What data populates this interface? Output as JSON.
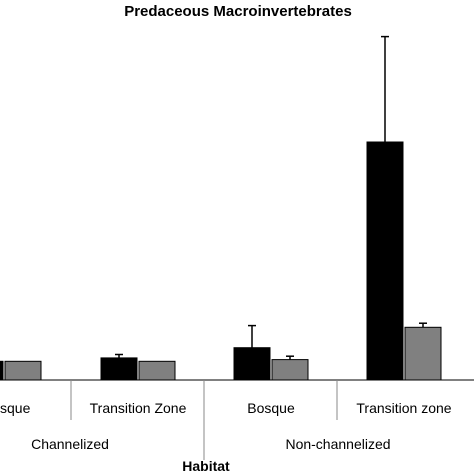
{
  "chart_data": {
    "type": "bar",
    "title": "Predaceous Macroinvertebrates",
    "xlabel": "Habitat",
    "ylabel": "",
    "groups": [
      "Channelized",
      "Non-channelized"
    ],
    "categories": [
      "Bosque",
      "Transition Zone",
      "Bosque",
      "Transition zone"
    ],
    "category_labels": [
      "sque",
      "Transition Zone",
      "Bosque",
      "Transition zone"
    ],
    "ylim": [
      0,
      100
    ],
    "grid": false,
    "series": [
      {
        "color": "#000000",
        "values": [
          5.5,
          6.5,
          9.5,
          70
        ],
        "errors": [
          0,
          1,
          6.5,
          31
        ]
      },
      {
        "color": "#808080",
        "values": [
          5.5,
          5.5,
          6,
          15.5
        ],
        "errors": [
          0,
          0,
          1,
          1.2
        ]
      }
    ]
  }
}
